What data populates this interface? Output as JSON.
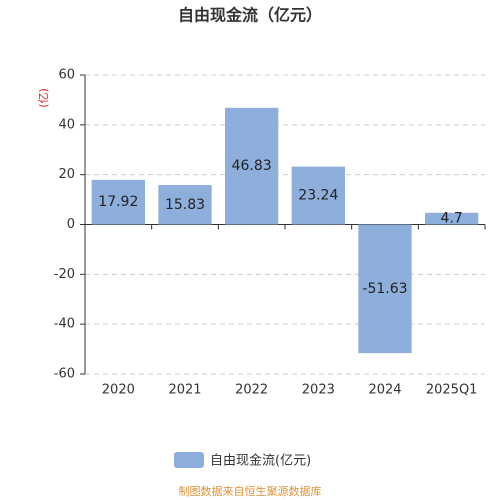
{
  "chart_data": {
    "type": "bar",
    "title": "自由现金流（亿元）",
    "y_label": "(亿)",
    "categories": [
      "2020",
      "2021",
      "2022",
      "2023",
      "2024",
      "2025Q1"
    ],
    "series": [
      {
        "name": "自由现金流(亿元)",
        "color": "#8eaedc",
        "values": [
          17.92,
          15.83,
          46.83,
          23.24,
          -51.63,
          4.7
        ]
      }
    ],
    "ylim": [
      -60,
      60
    ],
    "yticks": [
      -60,
      -40,
      -20,
      0,
      20,
      40,
      60
    ],
    "grid": true,
    "source": "制图数据来自恒生聚源数据库"
  }
}
